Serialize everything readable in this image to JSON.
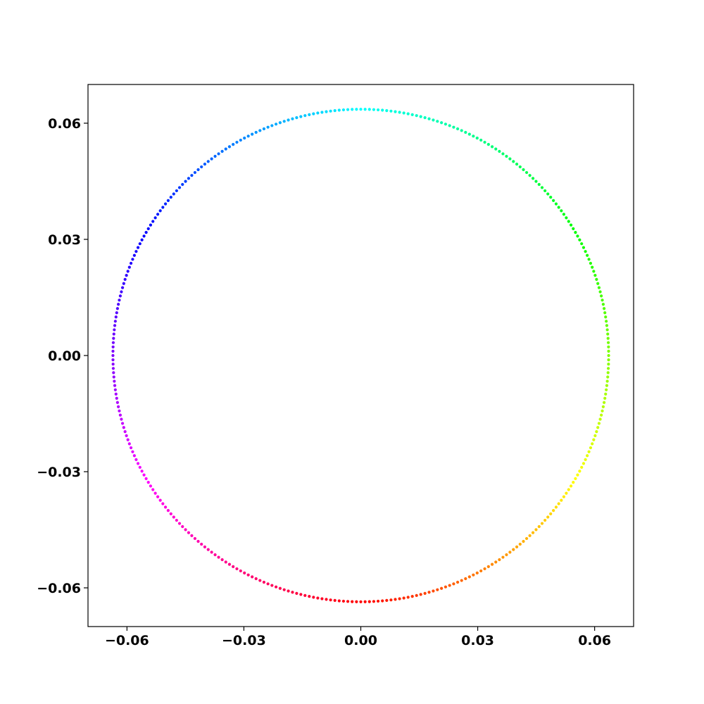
{
  "chart_data": {
    "type": "scatter",
    "title": "",
    "xlabel": "",
    "ylabel": "",
    "xlim": [
      -0.07,
      0.07
    ],
    "ylim": [
      -0.07,
      0.07
    ],
    "grid": false,
    "legend": "none",
    "x_ticks": [
      "−0.06",
      "−0.03",
      "0.00",
      "0.03",
      "0.06"
    ],
    "x_tick_values": [
      -0.06,
      -0.03,
      0.0,
      0.03,
      0.06
    ],
    "y_ticks": [
      "0.06",
      "0.03",
      "0.00",
      "−0.03",
      "−0.06"
    ],
    "y_tick_values": [
      0.06,
      0.03,
      0.0,
      -0.03,
      -0.06
    ],
    "series": [
      {
        "shape": "circle",
        "center": [
          0.0,
          0.0
        ],
        "radius": 0.0636,
        "point_count": 360,
        "colormap": "hsv",
        "color_start_angle_deg": -90,
        "color_direction": "counterclockwise",
        "color_stops": {
          "bottom": "#ff0000",
          "lower-right": "#ffff00",
          "right": "#55ff00",
          "upper-right": "#00ff66",
          "top": "#00ffee",
          "upper-left": "#0066ff",
          "left": "#6a00ff",
          "lower-left": "#ff00ff"
        }
      }
    ]
  }
}
